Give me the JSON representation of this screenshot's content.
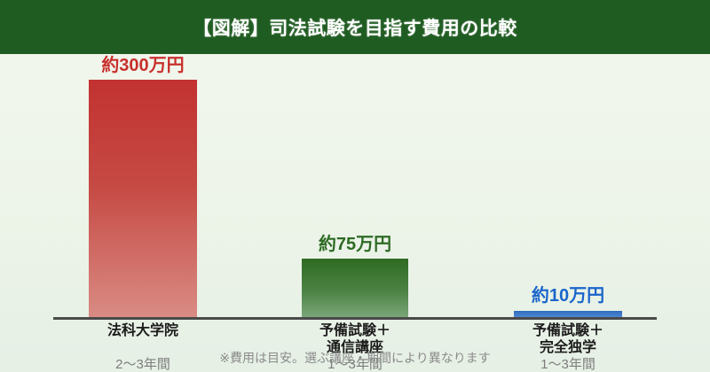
{
  "header": {
    "title": "【図解】司法試験を目指す費用の比較",
    "bg_color": "#1f5c21",
    "text_color": "#ffffff"
  },
  "chart_data": {
    "type": "bar",
    "title": "【図解】司法試験を目指す費用の比較",
    "categories": [
      "法科大学院",
      "予備試験＋通信講座",
      "予備試験＋完全独学"
    ],
    "values": [
      300,
      75,
      10
    ],
    "unit": "万円",
    "value_labels": [
      "約300万円",
      "約75万円",
      "約10万円"
    ],
    "durations": [
      "2〜3年間",
      "1〜3年間",
      "1〜3年間"
    ],
    "bar_colors": [
      "#c23230",
      "#2e6b22",
      "#2d6cbe"
    ],
    "ylim": [
      0,
      300
    ],
    "grid": false,
    "legend": false,
    "axis_color": "#4a4a4a"
  },
  "bars": [
    {
      "value_label": "約300万円",
      "value_label_color": "#c8302c",
      "label_line1": "法科大学院",
      "label_line2": "",
      "duration": "2〜3年間",
      "gradient_top": "#c23230",
      "gradient_bottom": "#d98b84"
    },
    {
      "value_label": "約75万円",
      "value_label_color": "#2d6a24",
      "label_line1": "予備試験＋",
      "label_line2": "通信講座",
      "duration": "1〜3年間",
      "gradient_top": "#2e6b22",
      "gradient_bottom": "#7aa678"
    },
    {
      "value_label": "約10万円",
      "value_label_color": "#1a66cc",
      "label_line1": "予備試験＋",
      "label_line2": "完全独学",
      "duration": "1〜3年間",
      "gradient_top": "#2d6cbe",
      "gradient_bottom": "#4e87d2"
    }
  ],
  "footer": {
    "note": "※費用は目安。選ぶ講座・期間により異なります"
  }
}
